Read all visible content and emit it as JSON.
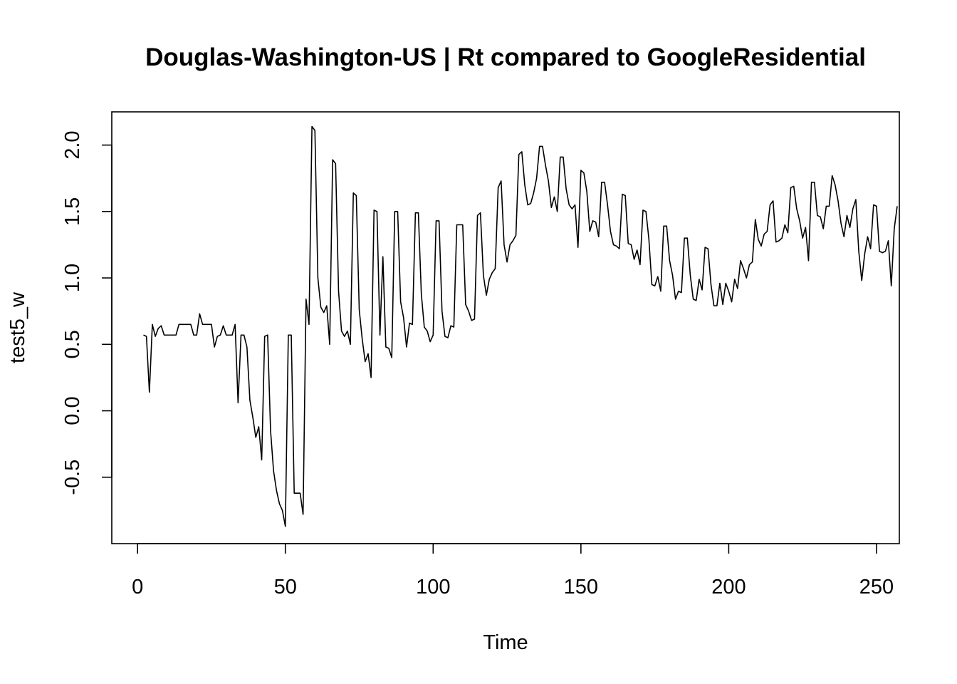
{
  "chart_data": {
    "type": "line",
    "title": "Douglas-Washington-US | Rt compared to GoogleResidential",
    "xlabel": "Time",
    "ylabel": "test5_w",
    "xlim": [
      -8.72,
      257.72
    ],
    "ylim": [
      -1.0,
      2.25
    ],
    "grid": false,
    "legend": "none",
    "x_ticks": [
      {
        "value": 0,
        "label": "0"
      },
      {
        "value": 50,
        "label": "50"
      },
      {
        "value": 100,
        "label": "100"
      },
      {
        "value": 150,
        "label": "150"
      },
      {
        "value": 200,
        "label": "200"
      },
      {
        "value": 250,
        "label": "250"
      }
    ],
    "y_ticks": [
      {
        "value": -0.5,
        "label": "-0.5"
      },
      {
        "value": 0.0,
        "label": "0.0"
      },
      {
        "value": 0.5,
        "label": "0.5"
      },
      {
        "value": 1.0,
        "label": "1.0"
      },
      {
        "value": 1.5,
        "label": "1.5"
      },
      {
        "value": 2.0,
        "label": "2.0"
      }
    ],
    "x_start": 2,
    "series": [
      {
        "values": [
          0.57,
          0.56,
          0.14,
          0.65,
          0.56,
          0.62,
          0.64,
          0.57,
          0.57,
          0.57,
          0.57,
          0.57,
          0.65,
          0.65,
          0.65,
          0.65,
          0.65,
          0.57,
          0.57,
          0.73,
          0.65,
          0.65,
          0.65,
          0.65,
          0.48,
          0.56,
          0.57,
          0.64,
          0.57,
          0.57,
          0.57,
          0.65,
          0.06,
          0.57,
          0.57,
          0.48,
          0.08,
          -0.05,
          -0.2,
          -0.12,
          -0.37,
          0.56,
          0.57,
          -0.15,
          -0.45,
          -0.6,
          -0.7,
          -0.75,
          -0.87,
          0.57,
          0.57,
          -0.62,
          -0.62,
          -0.62,
          -0.78,
          0.84,
          0.65,
          2.14,
          2.11,
          1.0,
          0.78,
          0.74,
          0.79,
          0.5,
          1.89,
          1.86,
          0.9,
          0.6,
          0.56,
          0.6,
          0.5,
          1.64,
          1.62,
          0.76,
          0.54,
          0.37,
          0.43,
          0.25,
          1.51,
          1.5,
          0.57,
          1.16,
          0.48,
          0.47,
          0.4,
          1.5,
          1.5,
          0.82,
          0.7,
          0.48,
          0.66,
          0.65,
          1.49,
          1.49,
          0.88,
          0.63,
          0.6,
          0.52,
          0.57,
          1.43,
          1.43,
          0.75,
          0.56,
          0.55,
          0.64,
          0.63,
          1.4,
          1.4,
          1.4,
          0.8,
          0.75,
          0.68,
          0.69,
          1.47,
          1.49,
          1.02,
          0.87,
          0.99,
          1.04,
          1.07,
          1.68,
          1.73,
          1.25,
          1.12,
          1.25,
          1.28,
          1.32,
          1.93,
          1.95,
          1.7,
          1.55,
          1.56,
          1.64,
          1.75,
          1.99,
          1.99,
          1.85,
          1.73,
          1.53,
          1.61,
          1.5,
          1.91,
          1.91,
          1.67,
          1.55,
          1.52,
          1.55,
          1.23,
          1.81,
          1.79,
          1.65,
          1.35,
          1.43,
          1.42,
          1.31,
          1.72,
          1.72,
          1.55,
          1.35,
          1.25,
          1.24,
          1.22,
          1.63,
          1.62,
          1.26,
          1.25,
          1.14,
          1.21,
          1.1,
          1.51,
          1.5,
          1.29,
          0.95,
          0.94,
          1.01,
          0.9,
          1.39,
          1.39,
          1.13,
          1.02,
          0.84,
          0.9,
          0.89,
          1.3,
          1.3,
          1.02,
          0.84,
          0.83,
          0.99,
          0.91,
          1.23,
          1.22,
          0.95,
          0.79,
          0.79,
          0.96,
          0.8,
          0.96,
          0.9,
          0.82,
          0.99,
          0.92,
          1.13,
          1.07,
          1.0,
          1.1,
          1.12,
          1.44,
          1.29,
          1.24,
          1.33,
          1.35,
          1.55,
          1.58,
          1.27,
          1.28,
          1.3,
          1.4,
          1.34,
          1.68,
          1.69,
          1.52,
          1.43,
          1.3,
          1.38,
          1.13,
          1.72,
          1.72,
          1.47,
          1.46,
          1.37,
          1.54,
          1.54,
          1.77,
          1.7,
          1.58,
          1.41,
          1.31,
          1.47,
          1.38,
          1.52,
          1.59,
          1.2,
          0.98,
          1.18,
          1.31,
          1.22,
          1.55,
          1.54,
          1.2,
          1.19,
          1.2,
          1.28,
          0.94,
          1.37,
          1.54
        ]
      }
    ]
  }
}
